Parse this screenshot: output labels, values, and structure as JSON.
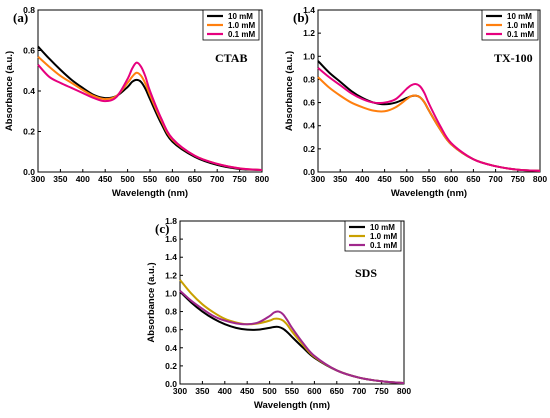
{
  "chart_data": [
    {
      "type": "line",
      "panel_label": "(a)",
      "surfactant_label": "CTAB",
      "xlabel": "Wavelength (nm)",
      "ylabel": "Absorbance (a.u.)",
      "xlim": [
        300,
        800
      ],
      "ylim": [
        0.0,
        0.8
      ],
      "xticks": [
        300,
        350,
        400,
        450,
        500,
        550,
        600,
        650,
        700,
        750,
        800
      ],
      "yticks": [
        "0.0",
        "0.2",
        "0.4",
        "0.6",
        "0.8"
      ],
      "legend_position": "top-right",
      "series": [
        {
          "name": "10 mM",
          "color": "#000000",
          "x": [
            300,
            325,
            350,
            375,
            400,
            425,
            450,
            475,
            500,
            510,
            520,
            530,
            540,
            550,
            575,
            600,
            650,
            700,
            750,
            800
          ],
          "y": [
            0.62,
            0.56,
            0.505,
            0.455,
            0.415,
            0.38,
            0.365,
            0.375,
            0.42,
            0.445,
            0.455,
            0.445,
            0.41,
            0.36,
            0.24,
            0.15,
            0.075,
            0.035,
            0.015,
            0.01
          ]
        },
        {
          "name": "1.0 mM",
          "color": "#ff7f0e",
          "x": [
            300,
            325,
            350,
            375,
            400,
            425,
            450,
            475,
            500,
            510,
            520,
            530,
            540,
            550,
            575,
            600,
            650,
            700,
            750,
            800
          ],
          "y": [
            0.57,
            0.52,
            0.475,
            0.44,
            0.405,
            0.375,
            0.36,
            0.375,
            0.44,
            0.47,
            0.49,
            0.475,
            0.435,
            0.38,
            0.255,
            0.16,
            0.08,
            0.04,
            0.018,
            0.01
          ]
        },
        {
          "name": "0.1 mM",
          "color": "#e6007e",
          "x": [
            300,
            325,
            350,
            375,
            400,
            425,
            450,
            475,
            500,
            510,
            520,
            530,
            540,
            550,
            575,
            600,
            650,
            700,
            750,
            800
          ],
          "y": [
            0.53,
            0.47,
            0.44,
            0.415,
            0.39,
            0.365,
            0.35,
            0.37,
            0.46,
            0.51,
            0.54,
            0.52,
            0.47,
            0.4,
            0.265,
            0.165,
            0.08,
            0.04,
            0.018,
            0.01
          ]
        }
      ]
    },
    {
      "type": "line",
      "panel_label": "(b)",
      "surfactant_label": "TX-100",
      "xlabel": "Wavelength (nm)",
      "ylabel": "Absorbance (a.u.)",
      "xlim": [
        300,
        800
      ],
      "ylim": [
        0.0,
        1.4
      ],
      "xticks": [
        300,
        350,
        400,
        450,
        500,
        550,
        600,
        650,
        700,
        750,
        800
      ],
      "yticks": [
        "0.0",
        "0.2",
        "0.4",
        "0.6",
        "0.8",
        "1.0",
        "1.2",
        "1.4"
      ],
      "legend_position": "top-right",
      "series": [
        {
          "name": "10 mM",
          "color": "#000000",
          "x": [
            300,
            325,
            350,
            375,
            400,
            425,
            450,
            475,
            500,
            510,
            520,
            530,
            540,
            550,
            575,
            600,
            650,
            700,
            750,
            800
          ],
          "y": [
            0.96,
            0.86,
            0.78,
            0.7,
            0.64,
            0.6,
            0.585,
            0.6,
            0.64,
            0.655,
            0.66,
            0.645,
            0.6,
            0.53,
            0.37,
            0.24,
            0.11,
            0.05,
            0.02,
            0.01
          ]
        },
        {
          "name": "1.0 mM",
          "color": "#ff7f0e",
          "x": [
            300,
            325,
            350,
            375,
            400,
            425,
            450,
            475,
            500,
            510,
            520,
            530,
            540,
            550,
            575,
            600,
            650,
            700,
            750,
            800
          ],
          "y": [
            0.82,
            0.73,
            0.66,
            0.6,
            0.56,
            0.53,
            0.525,
            0.56,
            0.63,
            0.655,
            0.66,
            0.645,
            0.6,
            0.53,
            0.37,
            0.24,
            0.11,
            0.05,
            0.02,
            0.01
          ]
        },
        {
          "name": "0.1 mM",
          "color": "#e6007e",
          "x": [
            300,
            325,
            350,
            375,
            400,
            425,
            450,
            475,
            500,
            510,
            520,
            530,
            540,
            550,
            575,
            600,
            650,
            700,
            750,
            800
          ],
          "y": [
            0.9,
            0.82,
            0.75,
            0.68,
            0.63,
            0.6,
            0.6,
            0.63,
            0.72,
            0.75,
            0.76,
            0.74,
            0.68,
            0.59,
            0.4,
            0.25,
            0.11,
            0.05,
            0.02,
            0.01
          ]
        }
      ]
    },
    {
      "type": "line",
      "panel_label": "(c)",
      "surfactant_label": "SDS",
      "xlabel": "Wavelength (nm)",
      "ylabel": "Absorbance (a.u.)",
      "xlim": [
        300,
        800
      ],
      "ylim": [
        0.0,
        1.8
      ],
      "xticks": [
        300,
        350,
        400,
        450,
        500,
        550,
        600,
        650,
        700,
        750,
        800
      ],
      "yticks": [
        "0.0",
        "0.2",
        "0.4",
        "0.6",
        "0.8",
        "1.0",
        "1.2",
        "1.4",
        "1.6",
        "1.8"
      ],
      "legend_position": "top-right",
      "series": [
        {
          "name": "10 mM",
          "color": "#000000",
          "x": [
            300,
            325,
            350,
            375,
            400,
            425,
            450,
            475,
            500,
            510,
            520,
            530,
            540,
            550,
            575,
            600,
            650,
            700,
            750,
            800
          ],
          "y": [
            1.02,
            0.9,
            0.8,
            0.72,
            0.66,
            0.62,
            0.6,
            0.6,
            0.62,
            0.63,
            0.63,
            0.61,
            0.57,
            0.52,
            0.4,
            0.29,
            0.15,
            0.07,
            0.03,
            0.01
          ]
        },
        {
          "name": "1.0 mM",
          "color": "#c9a000",
          "x": [
            300,
            325,
            350,
            375,
            400,
            425,
            450,
            475,
            500,
            510,
            520,
            530,
            540,
            550,
            575,
            600,
            650,
            700,
            750,
            800
          ],
          "y": [
            1.15,
            1.0,
            0.88,
            0.79,
            0.72,
            0.68,
            0.66,
            0.67,
            0.7,
            0.72,
            0.72,
            0.7,
            0.65,
            0.58,
            0.43,
            0.3,
            0.15,
            0.07,
            0.03,
            0.01
          ]
        },
        {
          "name": "0.1 mM",
          "color": "#a0288c",
          "x": [
            300,
            325,
            350,
            375,
            400,
            425,
            450,
            475,
            500,
            510,
            520,
            530,
            540,
            550,
            575,
            600,
            650,
            700,
            750,
            800
          ],
          "y": [
            1.03,
            0.92,
            0.83,
            0.75,
            0.7,
            0.67,
            0.66,
            0.68,
            0.75,
            0.79,
            0.8,
            0.77,
            0.7,
            0.62,
            0.45,
            0.31,
            0.15,
            0.07,
            0.03,
            0.01
          ]
        }
      ]
    }
  ]
}
